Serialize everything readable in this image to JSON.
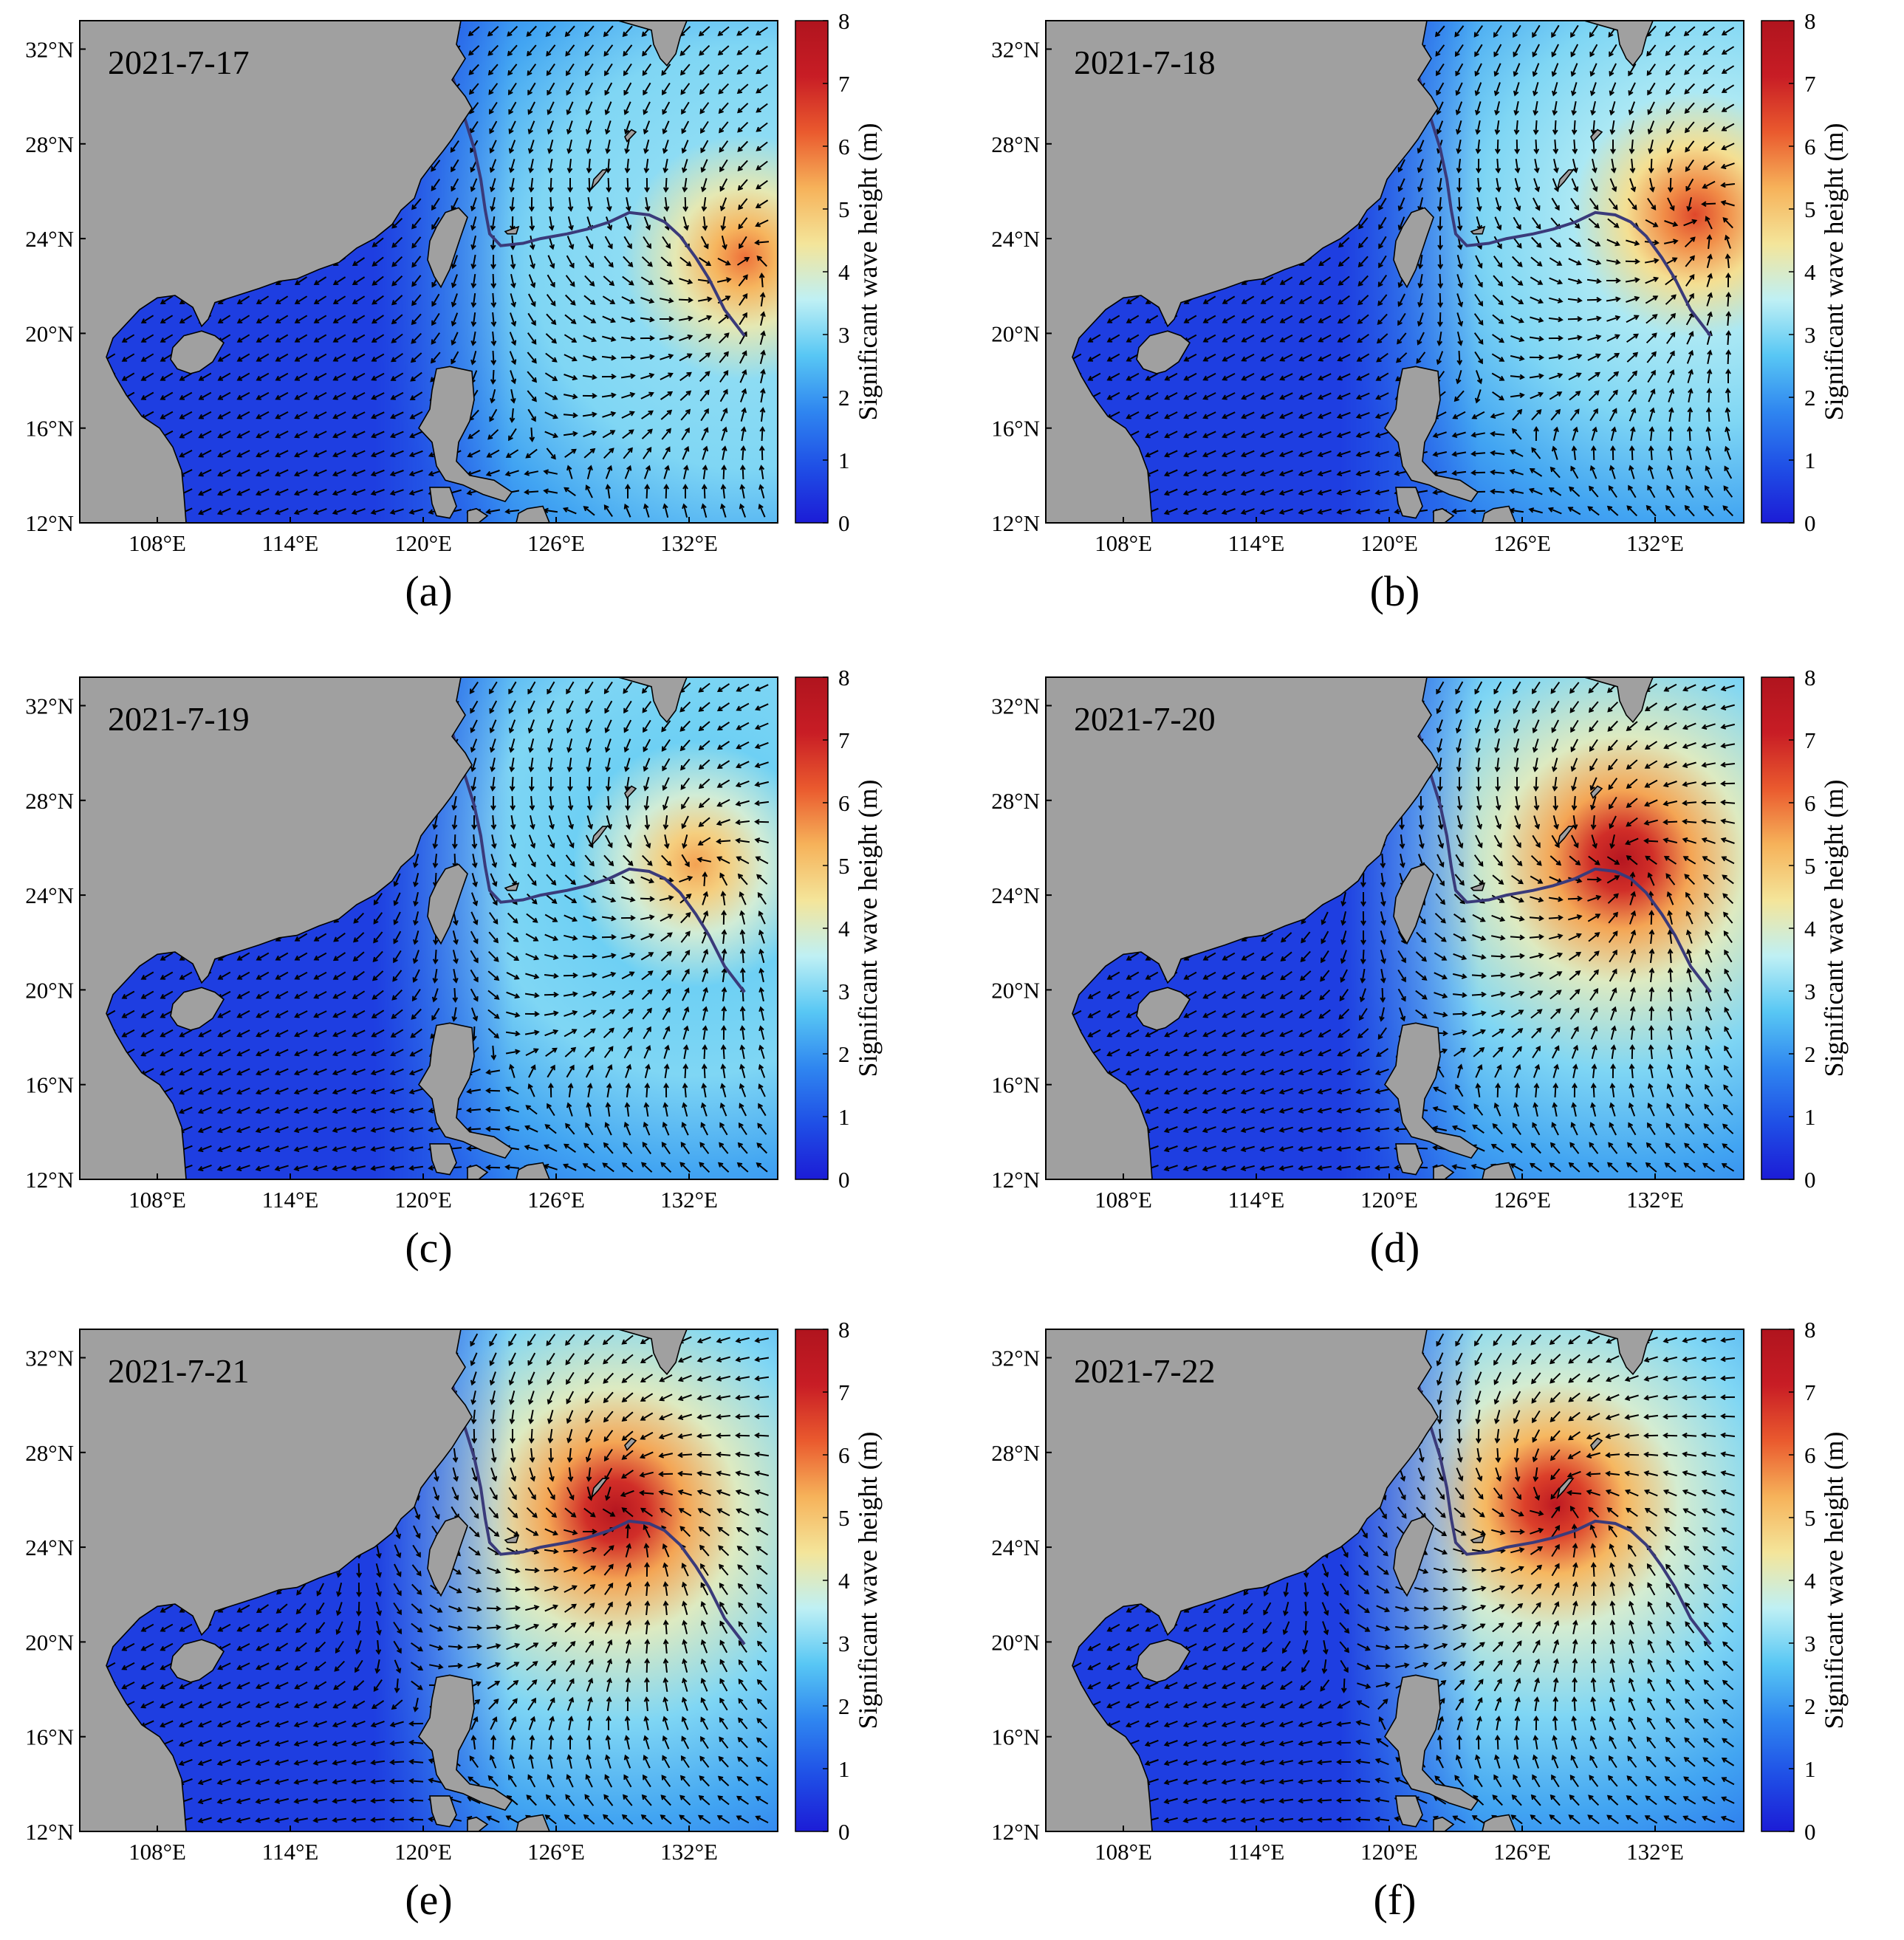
{
  "figure": {
    "colormap": [
      "#1c1cd6",
      "#1f4fe6",
      "#2f86f0",
      "#58c7f4",
      "#bff0f4",
      "#f4e59a",
      "#f6b25a",
      "#ea5a2e",
      "#c81d25",
      "#b0141e"
    ],
    "land_color": "#a0a0a0",
    "panels": [
      {
        "id": "a",
        "caption": "(a)",
        "date": "2021-7-17",
        "x_ticks": [
          "108°E",
          "114°E",
          "120°E",
          "126°E",
          "132°E"
        ],
        "y_ticks": [
          "32°N",
          "28°N",
          "24°N",
          "20°N",
          "16°N",
          "12°N"
        ],
        "colorbar": {
          "label": "Significant wave height (m)",
          "ticks": [
            "8",
            "7",
            "6",
            "5",
            "4",
            "3",
            "2",
            "1",
            "0"
          ],
          "range": [
            0,
            8
          ]
        },
        "storm_center": {
          "lon": 134.5,
          "lat": 23.2
        },
        "peak_hs": 6.0
      },
      {
        "id": "b",
        "caption": "(b)",
        "date": "2021-7-18",
        "x_ticks": [
          "108°E",
          "114°E",
          "120°E",
          "126°E",
          "132°E"
        ],
        "y_ticks": [
          "32°N",
          "28°N",
          "24°N",
          "20°N",
          "16°N",
          "12°N"
        ],
        "colorbar": {
          "label": "Significant wave height (m)",
          "ticks": [
            "8",
            "7",
            "6",
            "5",
            "4",
            "3",
            "2",
            "1",
            "0"
          ],
          "range": [
            0,
            8
          ]
        },
        "storm_center": {
          "lon": 133.8,
          "lat": 25.0
        },
        "peak_hs": 6.5
      },
      {
        "id": "c",
        "caption": "(c)",
        "date": "2021-7-19",
        "x_ticks": [
          "108°E",
          "114°E",
          "120°E",
          "126°E",
          "132°E"
        ],
        "y_ticks": [
          "32°N",
          "28°N",
          "24°N",
          "20°N",
          "16°N",
          "12°N"
        ],
        "colorbar": {
          "label": "Significant wave height (m)",
          "ticks": [
            "8",
            "7",
            "6",
            "5",
            "4",
            "3",
            "2",
            "1",
            "0"
          ],
          "range": [
            0,
            8
          ]
        },
        "storm_center": {
          "lon": 132.3,
          "lat": 25.3
        },
        "peak_hs": 5.5
      },
      {
        "id": "d",
        "caption": "(d)",
        "date": "2021-7-20",
        "x_ticks": [
          "108°E",
          "114°E",
          "120°E",
          "126°E",
          "132°E"
        ],
        "y_ticks": [
          "32°N",
          "28°N",
          "24°N",
          "20°N",
          "16°N",
          "12°N"
        ],
        "colorbar": {
          "label": "Significant wave height (m)",
          "ticks": [
            "8",
            "7",
            "6",
            "5",
            "4",
            "3",
            "2",
            "1",
            "0"
          ],
          "range": [
            0,
            8
          ]
        },
        "storm_center": {
          "lon": 130.5,
          "lat": 25.5
        },
        "peak_hs": 7.8
      },
      {
        "id": "e",
        "caption": "(e)",
        "date": "2021-7-21",
        "x_ticks": [
          "108°E",
          "114°E",
          "120°E",
          "126°E",
          "132°E"
        ],
        "y_ticks": [
          "32°N",
          "28°N",
          "24°N",
          "20°N",
          "16°N",
          "12°N"
        ],
        "colorbar": {
          "label": "Significant wave height (m)",
          "ticks": [
            "8",
            "7",
            "6",
            "5",
            "4",
            "3",
            "2",
            "1",
            "0"
          ],
          "range": [
            0,
            8
          ]
        },
        "storm_center": {
          "lon": 128.7,
          "lat": 25.5
        },
        "peak_hs": 7.8
      },
      {
        "id": "f",
        "caption": "(f)",
        "date": "2021-7-22",
        "x_ticks": [
          "108°E",
          "114°E",
          "120°E",
          "126°E",
          "132°E"
        ],
        "y_ticks": [
          "32°N",
          "28°N",
          "24°N",
          "20°N",
          "16°N",
          "12°N"
        ],
        "colorbar": {
          "label": "Significant wave height (m)",
          "ticks": [
            "8",
            "7",
            "6",
            "5",
            "4",
            "3",
            "2",
            "1",
            "0"
          ],
          "range": [
            0,
            8
          ]
        },
        "storm_center": {
          "lon": 127.5,
          "lat": 25.8
        },
        "peak_hs": 7.5
      }
    ]
  }
}
